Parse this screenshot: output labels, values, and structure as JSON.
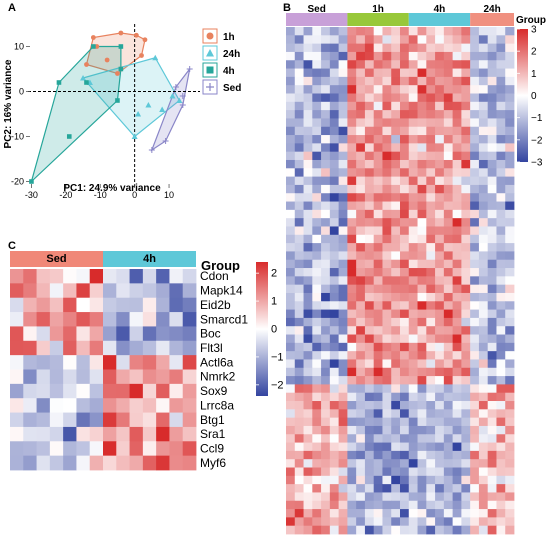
{
  "panels": {
    "a": "A",
    "b": "B",
    "c": "C"
  },
  "chart_data": [
    {
      "panel": "A",
      "type": "scatter",
      "xlabel": "PC1: 24.9% variance",
      "ylabel": "PC2: 16% variance",
      "xlim": [
        -31,
        19
      ],
      "ylim": [
        -21,
        15
      ],
      "xticks": [
        -30,
        -20,
        -10,
        0,
        10
      ],
      "yticks": [
        -20,
        -10,
        0,
        10
      ],
      "dashed_zero_lines": true,
      "legend": {
        "title": "",
        "placement": "right"
      },
      "series": [
        {
          "name": "1h",
          "marker": "circle",
          "color": "#e8825e",
          "points": [
            [
              -4,
              13
            ],
            [
              -12,
              12
            ],
            [
              0.5,
              12.5
            ],
            [
              3,
              11.5
            ],
            [
              -11,
              10
            ],
            [
              2,
              8
            ],
            [
              -8,
              7
            ],
            [
              -14,
              6
            ],
            [
              -4,
              5
            ],
            [
              -5,
              4
            ]
          ]
        },
        {
          "name": "24h",
          "marker": "triangle",
          "color": "#5ec8d8",
          "points": [
            [
              6,
              7.5
            ],
            [
              1,
              -5
            ],
            [
              4,
              -3
            ],
            [
              -15,
              3
            ],
            [
              -13,
              2
            ],
            [
              8,
              -4
            ],
            [
              11,
              -1
            ],
            [
              13,
              -2
            ],
            [
              0,
              -10
            ]
          ]
        },
        {
          "name": "4h",
          "marker": "square",
          "color": "#26a69a",
          "points": [
            [
              -30,
              -20
            ],
            [
              -19,
              -10
            ],
            [
              -12,
              10
            ],
            [
              -5,
              -2
            ],
            [
              -4,
              5
            ],
            [
              -4,
              10
            ],
            [
              -14,
              2
            ],
            [
              -22,
              2
            ]
          ]
        },
        {
          "name": "Sed",
          "marker": "cross",
          "color": "#8a86c8",
          "points": [
            [
              16,
              5
            ],
            [
              14,
              -1
            ],
            [
              9,
              -11
            ],
            [
              14,
              -3
            ],
            [
              5,
              -13
            ],
            [
              12,
              1
            ]
          ]
        }
      ]
    },
    {
      "panel": "B",
      "type": "heatmap",
      "legend_title": "Group",
      "groups": [
        {
          "name": "Sed",
          "color": "#c8a0d8",
          "cols": 7
        },
        {
          "name": "1h",
          "color": "#98c83a",
          "cols": 7
        },
        {
          "name": "4h",
          "color": "#5ec8d8",
          "cols": 7
        },
        {
          "name": "24h",
          "color": "#f09080",
          "cols": 5
        }
      ],
      "rows": 61,
      "color_scale": {
        "min": -3,
        "max": 3,
        "ticks": [
          3,
          2,
          1,
          0,
          -1,
          -2,
          -3
        ],
        "low": "#3344a0",
        "mid": "#ffffff",
        "high": "#d82b2b"
      }
    },
    {
      "panel": "C",
      "type": "heatmap",
      "legend_title": "Group",
      "groups": [
        {
          "name": "Sed",
          "color": "#f08878",
          "cols": 7
        },
        {
          "name": "4h",
          "color": "#5ec8d8",
          "cols": 7
        }
      ],
      "row_labels": [
        "Cdon",
        "Mapk14",
        "Eid2b",
        "Smarcd1",
        "Boc",
        "Flt3l",
        "Actl6a",
        "Nmrk2",
        "Sox9",
        "Lrrc8a",
        "Btg1",
        "Sra1",
        "Ccl9",
        "Myf6"
      ],
      "color_scale": {
        "min": -2.4,
        "max": 2.4,
        "ticks": [
          2,
          1,
          0,
          -1,
          -2
        ],
        "low": "#3344a0",
        "mid": "#ffffff",
        "high": "#d82b2b"
      }
    }
  ]
}
